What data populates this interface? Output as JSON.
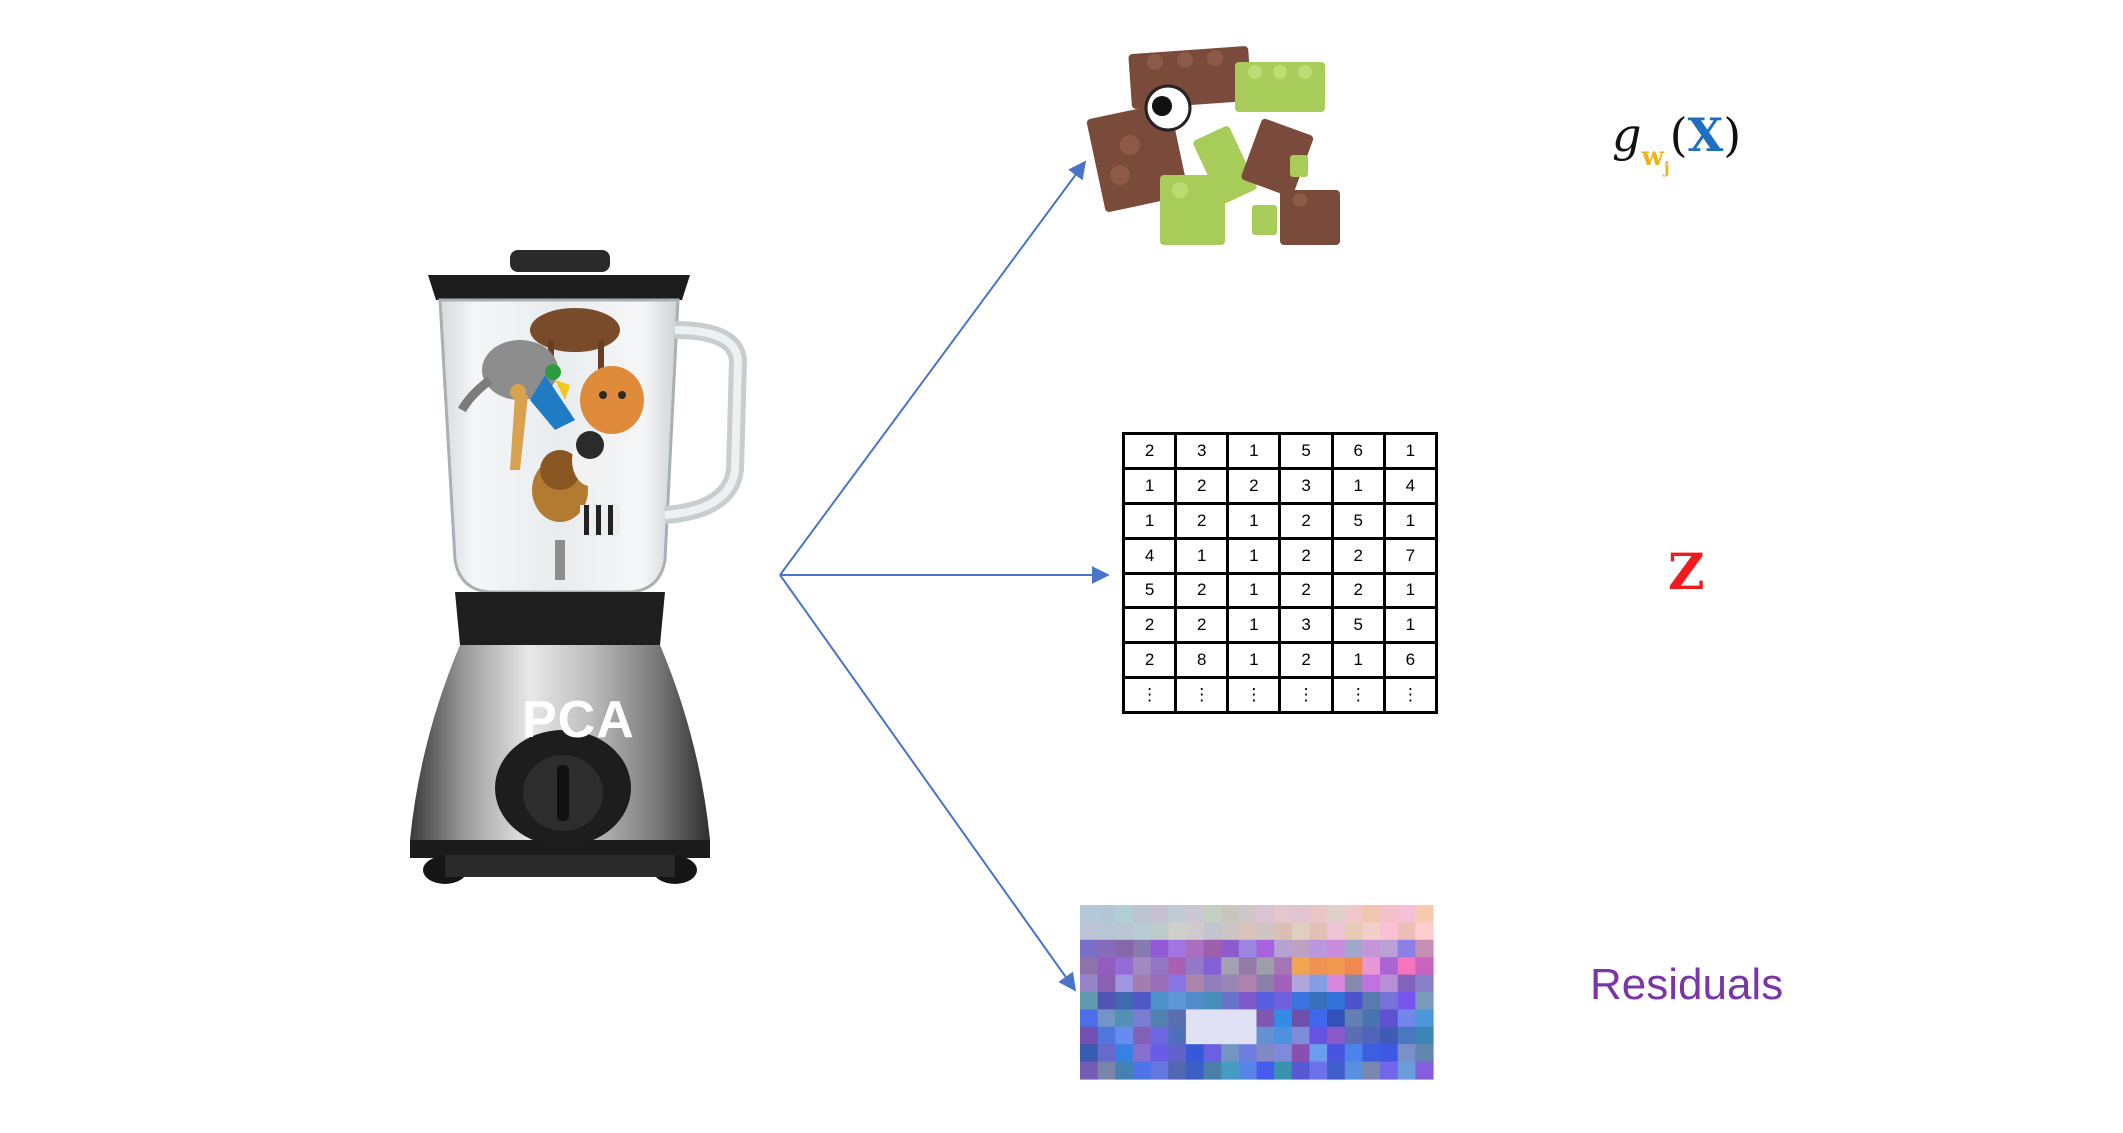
{
  "blender": {
    "label": "PCA"
  },
  "outputs": {
    "model": {
      "symbol": "g",
      "subscript": "w",
      "subsubscript": "j",
      "open": "(",
      "argument": "X",
      "close": ")"
    },
    "scores": {
      "symbol": "Z",
      "table": [
        [
          "2",
          "3",
          "1",
          "5",
          "6",
          "1"
        ],
        [
          "1",
          "2",
          "2",
          "3",
          "1",
          "4"
        ],
        [
          "1",
          "2",
          "1",
          "2",
          "5",
          "1"
        ],
        [
          "4",
          "1",
          "1",
          "2",
          "2",
          "7"
        ],
        [
          "5",
          "2",
          "1",
          "2",
          "2",
          "1"
        ],
        [
          "2",
          "2",
          "1",
          "3",
          "5",
          "1"
        ],
        [
          "2",
          "8",
          "1",
          "2",
          "1",
          "6"
        ],
        [
          "⋮",
          "⋮",
          "⋮",
          "⋮",
          "⋮",
          "⋮"
        ]
      ]
    },
    "residuals": {
      "label": "Residuals"
    }
  },
  "colors": {
    "arrow": "#4a74c9",
    "z": "#ee1c1c",
    "x": "#1f6fc0",
    "w": "#f0b21a",
    "residuals": "#7b35a6",
    "lego_brown": "#7a4a3a",
    "lego_green": "#a7cc5a"
  }
}
